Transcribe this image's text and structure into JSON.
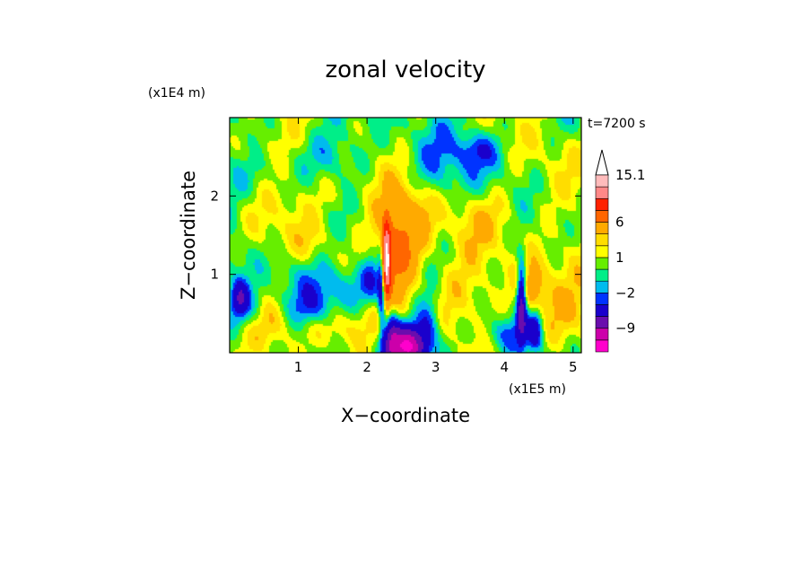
{
  "chart_data": {
    "type": "heatmap",
    "title": "zonal velocity",
    "xlabel": "X−coordinate",
    "ylabel": "Z−coordinate",
    "x_unit": "(x1E5 m)",
    "y_unit": "(x1E4 m)",
    "time_label": "t=7200 s",
    "x_ticks": [
      1,
      2,
      3,
      4,
      5
    ],
    "y_ticks": [
      1,
      2
    ],
    "xlim": [
      0,
      5.12
    ],
    "ylim": [
      0,
      3.0
    ],
    "grid": false,
    "colorbar": {
      "placement": "right",
      "extend": "max",
      "levels": [
        -15,
        -12,
        -9,
        -6,
        -3,
        -2,
        -1,
        0,
        1,
        2,
        3,
        6,
        9,
        12,
        15.1
      ],
      "colors": [
        "#ff00cc",
        "#cc00aa",
        "#6a0dad",
        "#1a00cc",
        "#0033ff",
        "#00bbee",
        "#00ee88",
        "#66ee00",
        "#ffff00",
        "#ffdd00",
        "#ffaa00",
        "#ff6600",
        "#ff2200",
        "#ff8888",
        "#ffbbbb"
      ],
      "labels": [
        {
          "value": 15.1,
          "text": "15.1"
        },
        {
          "value": 6,
          "text": "6"
        },
        {
          "value": 1,
          "text": "1"
        },
        {
          "value": -2,
          "text": "−2"
        },
        {
          "value": -9,
          "text": "−9"
        }
      ]
    },
    "blobs": [
      {
        "x": 2.27,
        "z": 1.15,
        "sx": 0.05,
        "sz": 0.35,
        "a": 16
      },
      {
        "x": 2.4,
        "z": 1.25,
        "sx": 0.22,
        "sz": 0.45,
        "a": 6
      },
      {
        "x": 2.65,
        "z": 1.7,
        "sx": 0.25,
        "sz": 0.4,
        "a": 3.5
      },
      {
        "x": 2.22,
        "z": 0.95,
        "sx": 0.04,
        "sz": 0.4,
        "a": -10
      },
      {
        "x": 2.1,
        "z": 1.0,
        "sx": 0.12,
        "sz": 0.25,
        "a": -4
      },
      {
        "x": 2.6,
        "z": 0.08,
        "sx": 0.18,
        "sz": 0.18,
        "a": -12
      },
      {
        "x": 2.35,
        "z": 0.2,
        "sx": 0.08,
        "sz": 0.25,
        "a": -6
      },
      {
        "x": 1.7,
        "z": 0.85,
        "sx": 0.45,
        "sz": 0.2,
        "a": -2.5
      },
      {
        "x": 1.2,
        "z": 0.55,
        "sx": 0.2,
        "sz": 0.15,
        "a": -2.2
      },
      {
        "x": 1.1,
        "z": 1.4,
        "sx": 0.3,
        "sz": 0.2,
        "a": 2.0
      },
      {
        "x": 0.85,
        "z": 1.3,
        "sx": 0.2,
        "sz": 0.25,
        "a": -1.6
      },
      {
        "x": 0.3,
        "z": 0.5,
        "sx": 0.2,
        "sz": 0.2,
        "a": -3
      },
      {
        "x": 0.15,
        "z": 0.7,
        "sx": 0.08,
        "sz": 0.15,
        "a": -5
      },
      {
        "x": 0.55,
        "z": 0.4,
        "sx": 0.25,
        "sz": 0.2,
        "a": 2.6
      },
      {
        "x": 1.6,
        "z": 0.3,
        "sx": 0.35,
        "sz": 0.2,
        "a": 2.8
      },
      {
        "x": 1.5,
        "z": 2.0,
        "sx": 0.35,
        "sz": 0.3,
        "a": 1.5
      },
      {
        "x": 2.9,
        "z": 2.3,
        "sx": 0.35,
        "sz": 0.35,
        "a": -1.5
      },
      {
        "x": 3.5,
        "z": 1.7,
        "sx": 0.4,
        "sz": 0.3,
        "a": 1.8
      },
      {
        "x": 3.3,
        "z": 0.8,
        "sx": 0.4,
        "sz": 0.35,
        "a": 2.2
      },
      {
        "x": 2.9,
        "z": 0.4,
        "sx": 0.12,
        "sz": 0.25,
        "a": -3.5
      },
      {
        "x": 4.25,
        "z": 0.7,
        "sx": 0.05,
        "sz": 0.35,
        "a": -9
      },
      {
        "x": 4.4,
        "z": 0.8,
        "sx": 0.18,
        "sz": 0.25,
        "a": 4.5
      },
      {
        "x": 4.45,
        "z": 0.3,
        "sx": 0.08,
        "sz": 0.2,
        "a": -5
      },
      {
        "x": 4.8,
        "z": 0.4,
        "sx": 0.3,
        "sz": 0.3,
        "a": 2.4
      },
      {
        "x": 4.9,
        "z": 1.4,
        "sx": 0.35,
        "sz": 0.45,
        "a": 1.4
      },
      {
        "x": 4.6,
        "z": 2.4,
        "sx": 0.4,
        "sz": 0.45,
        "a": 1.6
      },
      {
        "x": 3.9,
        "z": 2.4,
        "sx": 0.4,
        "sz": 0.3,
        "a": -1.3
      },
      {
        "x": 1.5,
        "z": 2.5,
        "sx": 0.25,
        "sz": 0.2,
        "a": -1.8
      },
      {
        "x": 0.4,
        "z": 2.1,
        "sx": 0.3,
        "sz": 0.3,
        "a": -1.2
      },
      {
        "x": 0.7,
        "z": 1.9,
        "sx": 0.35,
        "sz": 0.3,
        "a": 1.5
      },
      {
        "x": 4.0,
        "z": 0.25,
        "sx": 0.25,
        "sz": 0.15,
        "a": -2.2
      },
      {
        "x": 3.6,
        "z": 2.6,
        "sx": 0.2,
        "sz": 0.15,
        "a": -2.5
      },
      {
        "x": 0.3,
        "z": 2.6,
        "sx": 0.25,
        "sz": 0.2,
        "a": 1.7
      }
    ]
  }
}
